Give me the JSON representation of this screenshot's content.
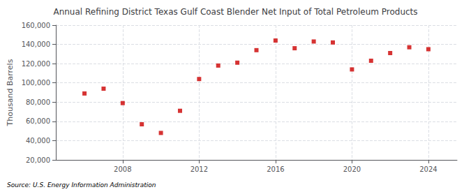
{
  "chart_data": {
    "type": "scatter",
    "title": "Annual Refining District Texas Gulf Coast Blender Net Input of Total Petroleum Products",
    "ylabel": "Thousand Barrels",
    "source": "Source: U.S. Energy Information Administration",
    "x": [
      2006,
      2007,
      2008,
      2009,
      2010,
      2011,
      2012,
      2013,
      2014,
      2015,
      2016,
      2017,
      2018,
      2019,
      2020,
      2021,
      2022,
      2023,
      2024
    ],
    "values": [
      89000,
      94000,
      79000,
      57000,
      48000,
      71000,
      104000,
      118000,
      121000,
      134000,
      144000,
      136000,
      143000,
      142000,
      114000,
      123000,
      131000,
      137000,
      135000
    ],
    "color": "#CC0000",
    "marker": "square",
    "xlim": [
      2004.5,
      2025.5
    ],
    "xticks": [
      2008,
      2012,
      2016,
      2020,
      2024
    ],
    "ylim": [
      20000,
      160000
    ],
    "yticks": [
      {
        "value": 20000,
        "label": "20,000"
      },
      {
        "value": 40000,
        "label": "40,000"
      },
      {
        "value": 60000,
        "label": "60,000"
      },
      {
        "value": 80000,
        "label": "80,000"
      },
      {
        "value": 100000,
        "label": "100,000"
      },
      {
        "value": 120000,
        "label": "120,000"
      },
      {
        "value": 140000,
        "label": "140,000"
      },
      {
        "value": 160000,
        "label": "160,000"
      }
    ],
    "grid": true
  }
}
